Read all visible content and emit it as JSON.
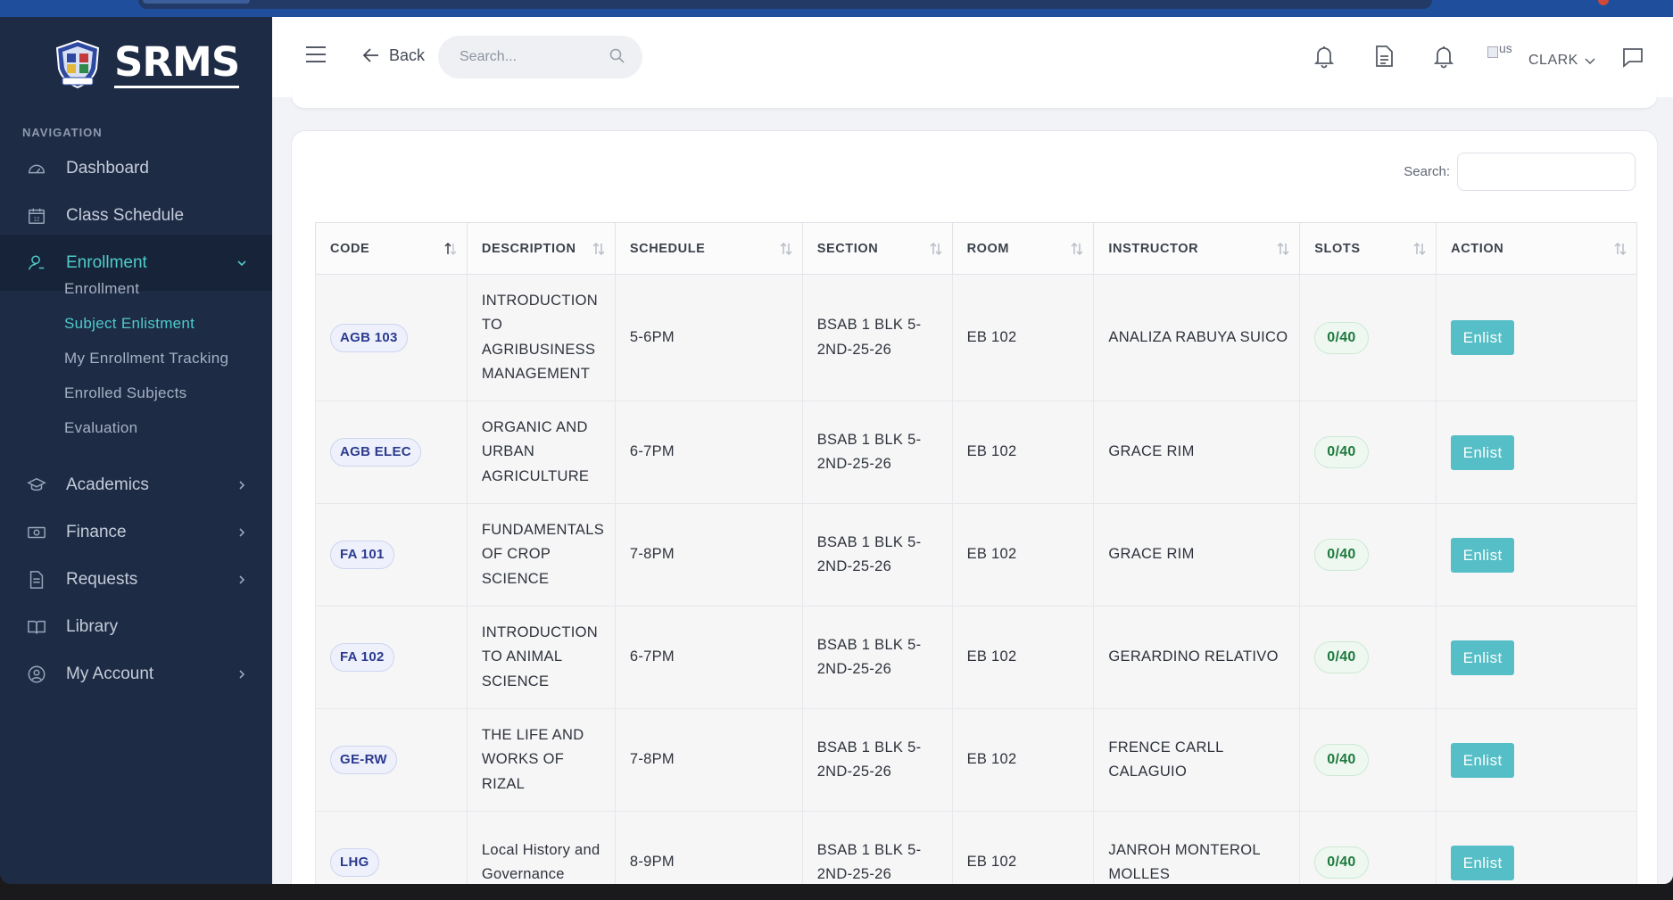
{
  "brand": {
    "name": "SRMS"
  },
  "sidebar": {
    "nav_label": "NAVIGATION",
    "items": [
      {
        "label": "Dashboard",
        "icon": "gauge-icon"
      },
      {
        "label": "Class Schedule",
        "icon": "calendar-icon"
      },
      {
        "label": "Enrollment",
        "icon": "user-icon"
      },
      {
        "label": "Academics",
        "icon": "graduation-cap-icon"
      },
      {
        "label": "Finance",
        "icon": "money-icon"
      },
      {
        "label": "Requests",
        "icon": "document-icon"
      },
      {
        "label": "Library",
        "icon": "book-icon"
      },
      {
        "label": "My Account",
        "icon": "user-circle-icon"
      }
    ],
    "enrollment_sub": [
      "Enrollment",
      "Subject Enlistment",
      "My Enrollment Tracking",
      "Enrolled Subjects",
      "Evaluation"
    ]
  },
  "header": {
    "back_label": "Back",
    "search_placeholder": "Search...",
    "user_alt": "us",
    "user_name": "CLARK"
  },
  "table": {
    "search_label": "Search:",
    "columns": [
      "CODE",
      "DESCRIPTION",
      "SCHEDULE",
      "SECTION",
      "ROOM",
      "INSTRUCTOR",
      "SLOTS",
      "ACTION"
    ],
    "action_label": "Enlist",
    "rows": [
      {
        "code": "AGB 103",
        "description": "INTRODUCTION TO AGRIBUSINESS MANAGEMENT",
        "schedule": "5-6PM",
        "section": "BSAB 1 BLK 5-2ND-25-26",
        "room": "EB 102",
        "instructor": "ANALIZA RABUYA SUICO",
        "slots": "0/40"
      },
      {
        "code": "AGB ELEC",
        "description": "ORGANIC AND URBAN AGRICULTURE",
        "schedule": "6-7PM",
        "section": "BSAB 1 BLK 5-2ND-25-26",
        "room": "EB 102",
        "instructor": "GRACE RIM",
        "slots": "0/40"
      },
      {
        "code": "FA 101",
        "description": "FUNDAMENTALS OF CROP SCIENCE",
        "schedule": "7-8PM",
        "section": "BSAB 1 BLK 5-2ND-25-26",
        "room": "EB 102",
        "instructor": "GRACE RIM",
        "slots": "0/40"
      },
      {
        "code": "FA 102",
        "description": "INTRODUCTION TO ANIMAL SCIENCE",
        "schedule": "6-7PM",
        "section": "BSAB 1 BLK 5-2ND-25-26",
        "room": "EB 102",
        "instructor": "GERARDINO RELATIVO",
        "slots": "0/40"
      },
      {
        "code": "GE-RW",
        "description": "THE LIFE AND WORKS OF RIZAL",
        "schedule": "7-8PM",
        "section": "BSAB 1 BLK 5-2ND-25-26",
        "room": "EB 102",
        "instructor": "FRENCE CARLL CALAGUIO",
        "slots": "0/40"
      },
      {
        "code": "LHG",
        "description": "Local History and Governance",
        "schedule": "8-9PM",
        "section": "BSAB 1 BLK 5-2ND-25-26",
        "room": "EB 102",
        "instructor": "JANROH MONTEROL MOLLES",
        "slots": "0/40"
      }
    ]
  },
  "colors": {
    "sidebar_bg": "#1d2b45",
    "accent": "#4ecbc9",
    "enlist_button": "#56bec6",
    "code_badge_text": "#2b3a8f",
    "slot_badge_text": "#1f7a3e"
  }
}
